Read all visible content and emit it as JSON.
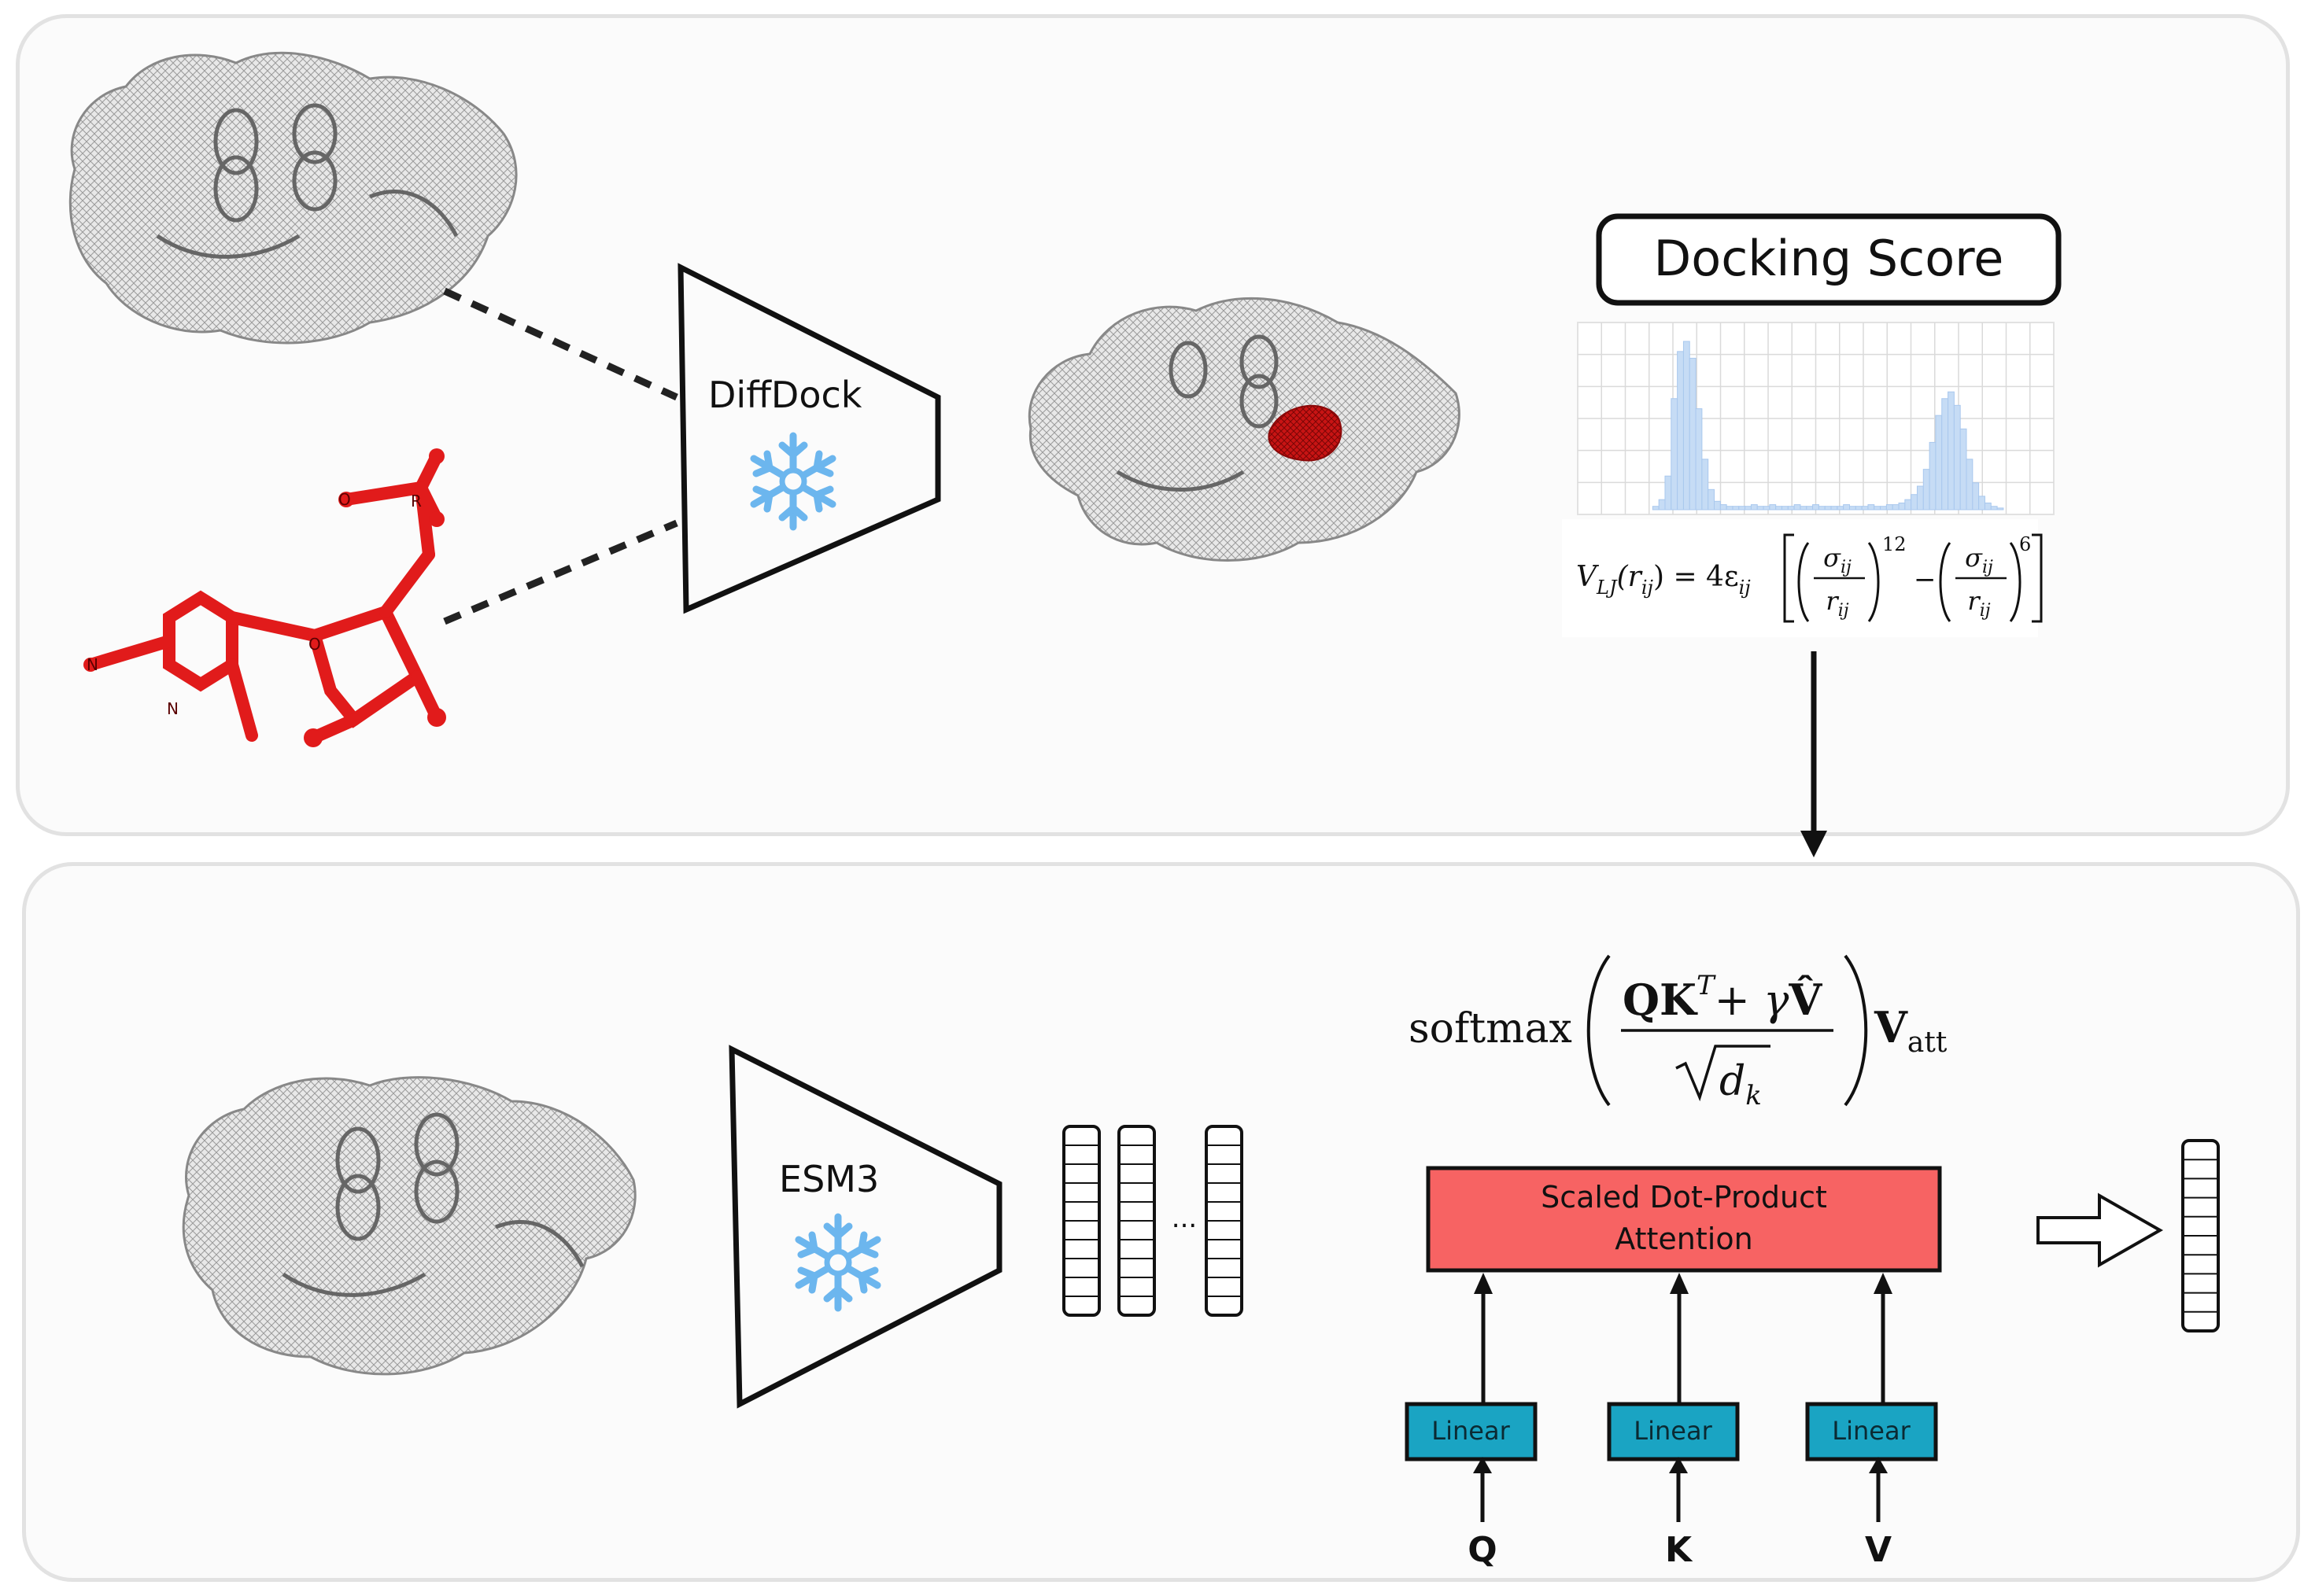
{
  "top_panel": {
    "diffdock_label": "DiffDock",
    "docking_score_title": "Docking Score",
    "histogram_values": [
      0,
      0,
      0,
      0,
      0,
      0,
      0,
      0,
      0,
      2,
      6,
      20,
      66,
      94,
      100,
      90,
      60,
      30,
      12,
      5,
      3,
      2,
      2,
      2,
      2,
      3,
      2,
      2,
      3,
      2,
      2,
      2,
      3,
      2,
      2,
      3,
      2,
      2,
      2,
      2,
      3,
      2,
      2,
      2,
      3,
      2,
      2,
      3,
      3,
      4,
      6,
      9,
      14,
      24,
      40,
      56,
      66,
      70,
      62,
      48,
      30,
      16,
      8,
      4,
      2,
      1,
      0,
      0,
      0,
      0,
      0
    ],
    "lj_formula": {
      "lhs": "V",
      "lhs_sub": "LJ",
      "lhs_arg": "(r",
      "lhs_arg_sub": "ij",
      "lhs_close": ") = 4ε",
      "eps_sub": "ij",
      "sigma": "σ",
      "sigma_sub": "ij",
      "r": "r",
      "r_sub": "ij",
      "exp_a": "12",
      "exp_b": "6",
      "minus": "−"
    },
    "atom_labels": [
      "O",
      "R",
      "N",
      "N",
      "O"
    ]
  },
  "bottom_panel": {
    "esm_label": "ESM3",
    "ellipsis": "...",
    "softmax_formula": {
      "fn": "softmax",
      "num_a": "QK",
      "num_a_sup": "T",
      "num_plus": "+ γ",
      "num_v": "V̂",
      "den": "d",
      "den_sub": "k",
      "out": "V",
      "out_sub": "att"
    },
    "attention_line1": "Scaled Dot-Product",
    "attention_line2": "Attention",
    "linear_labels": [
      "Linear",
      "Linear",
      "Linear"
    ],
    "inputs": [
      "Q",
      "K",
      "V"
    ]
  },
  "colors": {
    "attention_fill": "#f76363",
    "linear_fill": "#1aa4c3",
    "ligand_red": "#e11b1b",
    "histogram_blue": "#c6dcf5",
    "snowflake_blue": "#6cb6ee"
  }
}
